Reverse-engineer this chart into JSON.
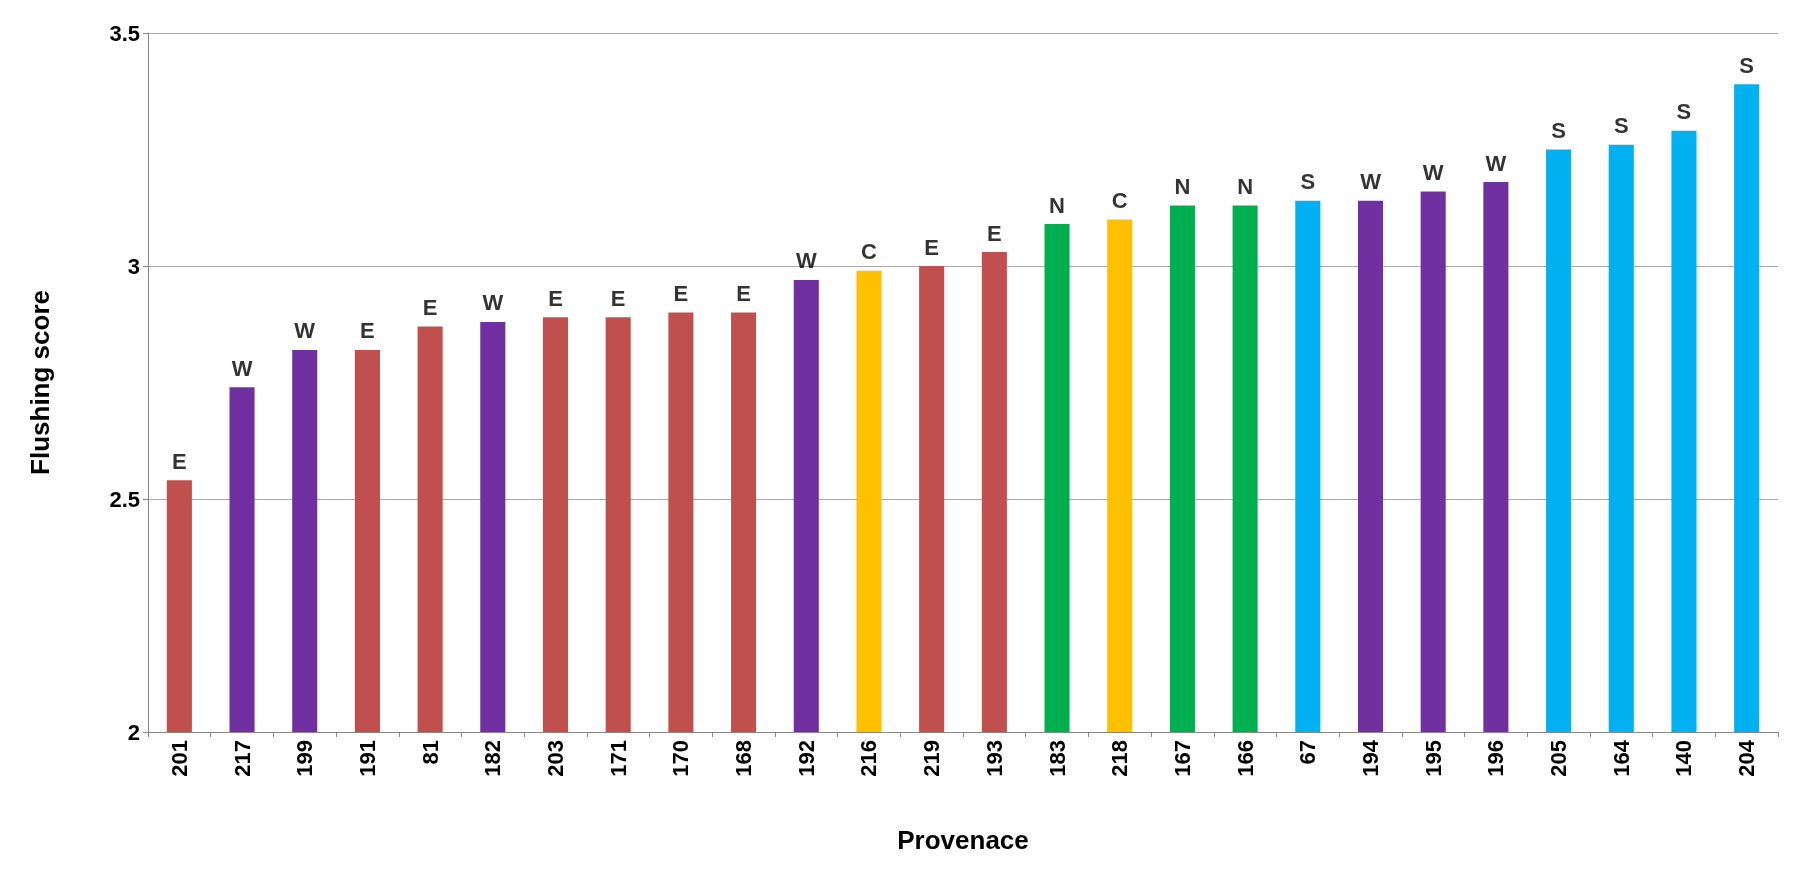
{
  "chart_data": {
    "type": "bar",
    "xlabel": "Provenace",
    "ylabel": "Flushing score",
    "categories": [
      "201",
      "217",
      "199",
      "191",
      "81",
      "182",
      "203",
      "171",
      "170",
      "168",
      "192",
      "216",
      "219",
      "193",
      "183",
      "218",
      "167",
      "166",
      "67",
      "194",
      "195",
      "196",
      "205",
      "164",
      "140",
      "204"
    ],
    "values": [
      2.54,
      2.74,
      2.82,
      2.82,
      2.87,
      2.88,
      2.89,
      2.89,
      2.9,
      2.9,
      2.97,
      2.99,
      3,
      3.03,
      3.09,
      3.1,
      3.13,
      3.13,
      3.14,
      3.14,
      3.16,
      3.18,
      3.25,
      3.26,
      3.29,
      3.39
    ],
    "colors": [
      "#c0504d",
      "#7030a0",
      "#7030a0",
      "#c0504d",
      "#c0504d",
      "#7030a0",
      "#c0504d",
      "#c0504d",
      "#c0504d",
      "#c0504d",
      "#7030a0",
      "#ffc000",
      "#c0504d",
      "#c0504d",
      "#00b050",
      "#ffc000",
      "#00b050",
      "#00b050",
      "#00b0f0",
      "#7030a0",
      "#7030a0",
      "#7030a0",
      "#00b0f0",
      "#00b0f0",
      "#00b0f0",
      "#00b0f0"
    ],
    "ylim": [
      2,
      3.5
    ],
    "yticks": [
      2,
      2.5,
      3,
      3.5
    ],
    "grid": "y",
    "annotations": [
      {
        "text": "E",
        "x": "201",
        "y": 2.54
      },
      {
        "text": "W",
        "x": "217",
        "y": 2.74
      },
      {
        "text": "W",
        "x": "199",
        "y": 2.82
      },
      {
        "text": "E",
        "x": "191",
        "y": 2.82
      },
      {
        "text": "E",
        "x": "81",
        "y": 2.87
      },
      {
        "text": "W",
        "x": "182",
        "y": 2.88
      },
      {
        "text": "E",
        "x": "203",
        "y": 2.89
      },
      {
        "text": "E",
        "x": "171",
        "y": 2.89
      },
      {
        "text": "E",
        "x": "170",
        "y": 2.9
      },
      {
        "text": "E",
        "x": "168",
        "y": 2.9
      },
      {
        "text": "W",
        "x": "192",
        "y": 2.97
      },
      {
        "text": "C",
        "x": "216",
        "y": 2.99
      },
      {
        "text": "E",
        "x": "219",
        "y": 3
      },
      {
        "text": "E",
        "x": "193",
        "y": 3.03
      },
      {
        "text": "N",
        "x": "183",
        "y": 3.09
      },
      {
        "text": "C",
        "x": "218",
        "y": 3.1
      },
      {
        "text": "N",
        "x": "167",
        "y": 3.13
      },
      {
        "text": "N",
        "x": "166",
        "y": 3.13
      },
      {
        "text": "S",
        "x": "67",
        "y": 3.14
      },
      {
        "text": "W",
        "x": "194",
        "y": 3.14
      },
      {
        "text": "W",
        "x": "195",
        "y": 3.16
      },
      {
        "text": "W",
        "x": "196",
        "y": 3.18
      },
      {
        "text": "S",
        "x": "205",
        "y": 3.25
      },
      {
        "text": "S",
        "x": "164",
        "y": 3.26
      },
      {
        "text": "S",
        "x": "140",
        "y": 3.29
      },
      {
        "text": "S",
        "x": "204",
        "y": 3.39
      }
    ]
  }
}
